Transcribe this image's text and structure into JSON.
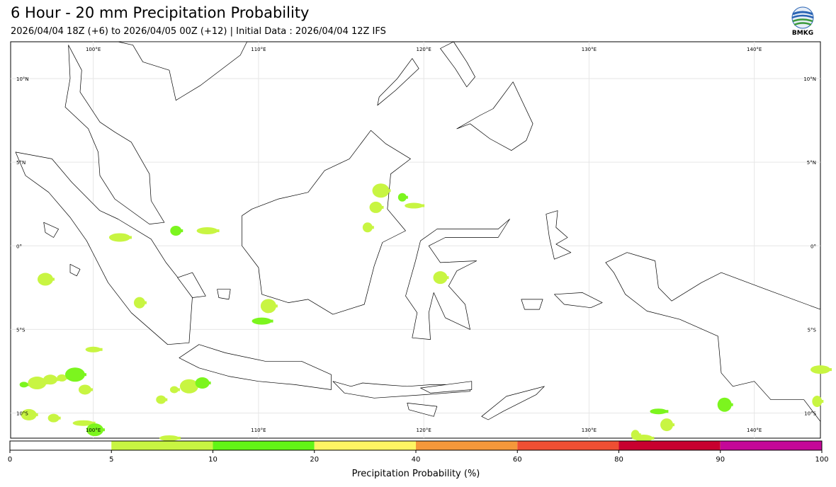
{
  "header": {
    "title": "6 Hour - 20 mm Precipitation Probability",
    "subtitle": "2026/04/04 18Z (+6) to 2026/04/05 00Z (+12) | Initial Data : 2026/04/04 12Z IFS",
    "logo_text": "BMKG"
  },
  "map": {
    "lon_range": [
      95,
      144
    ],
    "lat_range": [
      -11.5,
      12.2
    ],
    "lon_labels": [
      "100°E",
      "110°E",
      "120°E",
      "130°E",
      "140°E"
    ],
    "lon_values": [
      100,
      110,
      120,
      130,
      140
    ],
    "lat_labels": [
      "10°N",
      "5°N",
      "0°",
      "5°S",
      "10°S"
    ],
    "lat_values": [
      10,
      5,
      0,
      -5,
      -10
    ],
    "grid": true,
    "precip_color_low": "#c8f542",
    "precip_color_mid": "#7cf51e",
    "precip_areas": [
      {
        "lon": 95.8,
        "lat": -8.3
      },
      {
        "lon": 96.6,
        "lat": -8.2
      },
      {
        "lon": 97.4,
        "lat": -8.0
      },
      {
        "lon": 98.1,
        "lat": -7.9
      },
      {
        "lon": 98.9,
        "lat": -7.7
      },
      {
        "lon": 96.1,
        "lat": -10.1
      },
      {
        "lon": 97.6,
        "lat": -10.3
      },
      {
        "lon": 99.4,
        "lat": -10.6
      },
      {
        "lon": 100.1,
        "lat": -11.0
      },
      {
        "lon": 99.5,
        "lat": -8.6
      },
      {
        "lon": 104.9,
        "lat": -8.6
      },
      {
        "lon": 105.8,
        "lat": -8.4
      },
      {
        "lon": 106.6,
        "lat": -8.2
      },
      {
        "lon": 104.1,
        "lat": -9.2
      },
      {
        "lon": 104.6,
        "lat": -11.5
      },
      {
        "lon": 97.1,
        "lat": -2.0
      },
      {
        "lon": 105.0,
        "lat": 0.9
      },
      {
        "lon": 106.9,
        "lat": 0.9
      },
      {
        "lon": 117.4,
        "lat": 3.3
      },
      {
        "lon": 117.1,
        "lat": 2.3
      },
      {
        "lon": 118.7,
        "lat": 2.9
      },
      {
        "lon": 119.4,
        "lat": 2.4
      },
      {
        "lon": 121.0,
        "lat": -1.9
      },
      {
        "lon": 116.6,
        "lat": 1.1
      },
      {
        "lon": 110.2,
        "lat": -4.5
      },
      {
        "lon": 110.6,
        "lat": -3.6
      },
      {
        "lon": 102.8,
        "lat": -3.4
      },
      {
        "lon": 101.6,
        "lat": 0.5
      },
      {
        "lon": 134.2,
        "lat": -9.9
      },
      {
        "lon": 134.7,
        "lat": -10.7
      },
      {
        "lon": 132.8,
        "lat": -11.3
      },
      {
        "lon": 133.3,
        "lat": -11.5
      },
      {
        "lon": 138.2,
        "lat": -9.5
      },
      {
        "lon": 143.8,
        "lat": -9.3
      },
      {
        "lon": 144.0,
        "lat": -7.4
      },
      {
        "lon": 100.0,
        "lat": -6.2
      }
    ]
  },
  "colorbar": {
    "label": "Precipitation Probability (%)",
    "bins": [
      {
        "from": 0,
        "to": 5,
        "color": "#ffffff"
      },
      {
        "from": 5,
        "to": 10,
        "color": "#c8f542"
      },
      {
        "from": 10,
        "to": 20,
        "color": "#62f516"
      },
      {
        "from": 20,
        "to": 40,
        "color": "#fff563"
      },
      {
        "from": 40,
        "to": 60,
        "color": "#f5983a"
      },
      {
        "from": 60,
        "to": 80,
        "color": "#ef4f33"
      },
      {
        "from": 80,
        "to": 90,
        "color": "#c8002f"
      },
      {
        "from": 90,
        "to": 100,
        "color": "#c40898"
      }
    ],
    "ticks": [
      "0",
      "5",
      "10",
      "20",
      "40",
      "60",
      "80",
      "90",
      "100"
    ]
  },
  "land_polygons": [
    {
      "name": "sumatra",
      "pts": [
        [
          95.3,
          5.6
        ],
        [
          97.5,
          5.2
        ],
        [
          98.7,
          3.8
        ],
        [
          100.4,
          2.1
        ],
        [
          101.5,
          1.6
        ],
        [
          103.5,
          0.4
        ],
        [
          104.4,
          -1.0
        ],
        [
          106.0,
          -3.0
        ],
        [
          105.8,
          -5.8
        ],
        [
          104.5,
          -5.9
        ],
        [
          102.3,
          -4.0
        ],
        [
          100.9,
          -2.2
        ],
        [
          99.6,
          0.3
        ],
        [
          98.6,
          1.7
        ],
        [
          97.3,
          3.2
        ],
        [
          95.9,
          4.2
        ]
      ]
    },
    {
      "name": "malay-peninsula",
      "pts": [
        [
          98.5,
          12.0
        ],
        [
          99.3,
          10.5
        ],
        [
          99.2,
          9.2
        ],
        [
          100.4,
          7.4
        ],
        [
          101.3,
          6.8
        ],
        [
          102.3,
          6.2
        ],
        [
          103.4,
          4.3
        ],
        [
          103.5,
          2.7
        ],
        [
          104.3,
          1.4
        ],
        [
          103.4,
          1.3
        ],
        [
          101.3,
          2.8
        ],
        [
          100.4,
          4.2
        ],
        [
          100.3,
          5.6
        ],
        [
          99.7,
          7.0
        ],
        [
          98.3,
          8.3
        ],
        [
          98.6,
          10.0
        ]
      ]
    },
    {
      "name": "indochina",
      "pts": [
        [
          101.5,
          12.2
        ],
        [
          102.4,
          12.0
        ],
        [
          103.0,
          11.0
        ],
        [
          104.6,
          10.5
        ],
        [
          105.0,
          8.7
        ],
        [
          106.5,
          9.6
        ],
        [
          108.9,
          11.4
        ],
        [
          109.3,
          12.2
        ]
      ]
    },
    {
      "name": "borneo",
      "pts": [
        [
          109.0,
          1.8
        ],
        [
          109.6,
          2.2
        ],
        [
          111.2,
          2.8
        ],
        [
          113.0,
          3.2
        ],
        [
          114.0,
          4.5
        ],
        [
          115.5,
          5.2
        ],
        [
          116.8,
          6.9
        ],
        [
          117.7,
          6.1
        ],
        [
          119.2,
          5.2
        ],
        [
          118.0,
          4.3
        ],
        [
          117.8,
          2.2
        ],
        [
          118.9,
          0.9
        ],
        [
          117.5,
          0.2
        ],
        [
          117.0,
          -1.2
        ],
        [
          116.4,
          -3.5
        ],
        [
          114.5,
          -4.1
        ],
        [
          113.0,
          -3.2
        ],
        [
          111.8,
          -3.4
        ],
        [
          110.2,
          -2.9
        ],
        [
          110.0,
          -1.3
        ],
        [
          109.0,
          0.0
        ]
      ]
    },
    {
      "name": "java",
      "pts": [
        [
          105.2,
          -6.7
        ],
        [
          106.4,
          -5.9
        ],
        [
          108.0,
          -6.4
        ],
        [
          110.4,
          -6.9
        ],
        [
          112.6,
          -6.9
        ],
        [
          114.4,
          -7.7
        ],
        [
          114.4,
          -8.6
        ],
        [
          112.2,
          -8.3
        ],
        [
          110.0,
          -8.1
        ],
        [
          108.2,
          -7.8
        ],
        [
          106.4,
          -7.3
        ]
      ]
    },
    {
      "name": "bali-nusa",
      "pts": [
        [
          114.5,
          -8.1
        ],
        [
          115.6,
          -8.4
        ],
        [
          116.3,
          -8.2
        ],
        [
          117.5,
          -8.3
        ],
        [
          119.0,
          -8.4
        ],
        [
          120.5,
          -8.3
        ],
        [
          122.8,
          -8.3
        ],
        [
          122.8,
          -8.7
        ],
        [
          120.0,
          -8.9
        ],
        [
          117.0,
          -9.1
        ],
        [
          115.2,
          -8.8
        ]
      ]
    },
    {
      "name": "sumba",
      "pts": [
        [
          119.0,
          -9.4
        ],
        [
          120.8,
          -9.6
        ],
        [
          120.6,
          -10.2
        ],
        [
          119.1,
          -9.8
        ]
      ]
    },
    {
      "name": "timor",
      "pts": [
        [
          123.5,
          -10.2
        ],
        [
          125.0,
          -9.0
        ],
        [
          127.3,
          -8.4
        ],
        [
          126.8,
          -8.9
        ],
        [
          124.8,
          -9.9
        ],
        [
          123.9,
          -10.4
        ]
      ]
    },
    {
      "name": "sulawesi",
      "pts": [
        [
          119.3,
          -5.5
        ],
        [
          119.6,
          -4.0
        ],
        [
          118.9,
          -3.0
        ],
        [
          119.5,
          -0.9
        ],
        [
          119.8,
          0.3
        ],
        [
          120.8,
          1.0
        ],
        [
          122.0,
          1.0
        ],
        [
          124.5,
          1.0
        ],
        [
          125.2,
          1.6
        ],
        [
          124.5,
          0.5
        ],
        [
          123.0,
          0.5
        ],
        [
          121.3,
          0.5
        ],
        [
          120.3,
          0.0
        ],
        [
          121.0,
          -1.0
        ],
        [
          123.2,
          -0.9
        ],
        [
          122.0,
          -1.5
        ],
        [
          121.5,
          -2.4
        ],
        [
          122.5,
          -3.5
        ],
        [
          122.8,
          -5.0
        ],
        [
          121.3,
          -4.3
        ],
        [
          120.6,
          -2.8
        ],
        [
          120.3,
          -4.0
        ],
        [
          120.4,
          -5.6
        ]
      ]
    },
    {
      "name": "halmahera",
      "pts": [
        [
          127.4,
          1.9
        ],
        [
          128.1,
          2.1
        ],
        [
          128.0,
          1.1
        ],
        [
          128.7,
          0.5
        ],
        [
          128.0,
          0.1
        ],
        [
          128.9,
          -0.4
        ],
        [
          127.9,
          -0.8
        ],
        [
          127.6,
          0.5
        ]
      ]
    },
    {
      "name": "seram",
      "pts": [
        [
          127.9,
          -2.9
        ],
        [
          129.6,
          -2.8
        ],
        [
          130.8,
          -3.4
        ],
        [
          130.1,
          -3.7
        ],
        [
          128.5,
          -3.5
        ]
      ]
    },
    {
      "name": "buru",
      "pts": [
        [
          125.9,
          -3.2
        ],
        [
          127.2,
          -3.2
        ],
        [
          127.0,
          -3.8
        ],
        [
          126.1,
          -3.8
        ]
      ]
    },
    {
      "name": "new-guinea",
      "pts": [
        [
          131.0,
          -1.0
        ],
        [
          132.3,
          -0.4
        ],
        [
          134.0,
          -0.9
        ],
        [
          134.2,
          -2.5
        ],
        [
          135.0,
          -3.3
        ],
        [
          136.8,
          -2.2
        ],
        [
          138.0,
          -1.6
        ],
        [
          140.7,
          -2.6
        ],
        [
          144.0,
          -3.8
        ],
        [
          144.0,
          -10.5
        ],
        [
          143.0,
          -9.2
        ],
        [
          141.0,
          -9.2
        ],
        [
          140.0,
          -8.1
        ],
        [
          138.7,
          -8.4
        ],
        [
          138.0,
          -7.6
        ],
        [
          137.8,
          -5.4
        ],
        [
          135.5,
          -4.4
        ],
        [
          133.5,
          -3.9
        ],
        [
          132.2,
          -2.9
        ],
        [
          131.5,
          -1.6
        ]
      ]
    },
    {
      "name": "mindanao",
      "pts": [
        [
          122.0,
          7.0
        ],
        [
          123.4,
          7.8
        ],
        [
          124.2,
          8.2
        ],
        [
          125.4,
          9.8
        ],
        [
          126.6,
          7.3
        ],
        [
          126.2,
          6.3
        ],
        [
          125.3,
          5.7
        ],
        [
          124.0,
          6.4
        ],
        [
          122.8,
          7.3
        ]
      ]
    },
    {
      "name": "visayas-luzon",
      "pts": [
        [
          121.8,
          12.2
        ],
        [
          122.6,
          11.0
        ],
        [
          123.1,
          10.1
        ],
        [
          122.6,
          9.5
        ],
        [
          121.9,
          10.6
        ],
        [
          121.0,
          11.8
        ]
      ]
    },
    {
      "name": "palawan",
      "pts": [
        [
          117.2,
          8.4
        ],
        [
          118.3,
          9.3
        ],
        [
          119.7,
          10.6
        ],
        [
          119.3,
          11.2
        ],
        [
          118.4,
          10.0
        ],
        [
          117.3,
          8.9
        ]
      ]
    },
    {
      "name": "bangka",
      "pts": [
        [
          105.1,
          -1.9
        ],
        [
          106.0,
          -1.6
        ],
        [
          106.8,
          -3.0
        ],
        [
          106.0,
          -3.1
        ]
      ]
    },
    {
      "name": "belitung",
      "pts": [
        [
          107.5,
          -2.6
        ],
        [
          108.3,
          -2.6
        ],
        [
          108.2,
          -3.2
        ],
        [
          107.6,
          -3.1
        ]
      ]
    },
    {
      "name": "nias",
      "pts": [
        [
          97.0,
          1.4
        ],
        [
          97.9,
          1.0
        ],
        [
          97.6,
          0.5
        ],
        [
          97.1,
          0.8
        ]
      ]
    },
    {
      "name": "siberut",
      "pts": [
        [
          98.6,
          -1.1
        ],
        [
          99.2,
          -1.4
        ],
        [
          99.0,
          -1.8
        ],
        [
          98.6,
          -1.6
        ]
      ]
    },
    {
      "name": "flores",
      "pts": [
        [
          119.8,
          -8.5
        ],
        [
          122.9,
          -8.1
        ],
        [
          122.9,
          -8.6
        ],
        [
          120.4,
          -8.8
        ]
      ]
    }
  ]
}
